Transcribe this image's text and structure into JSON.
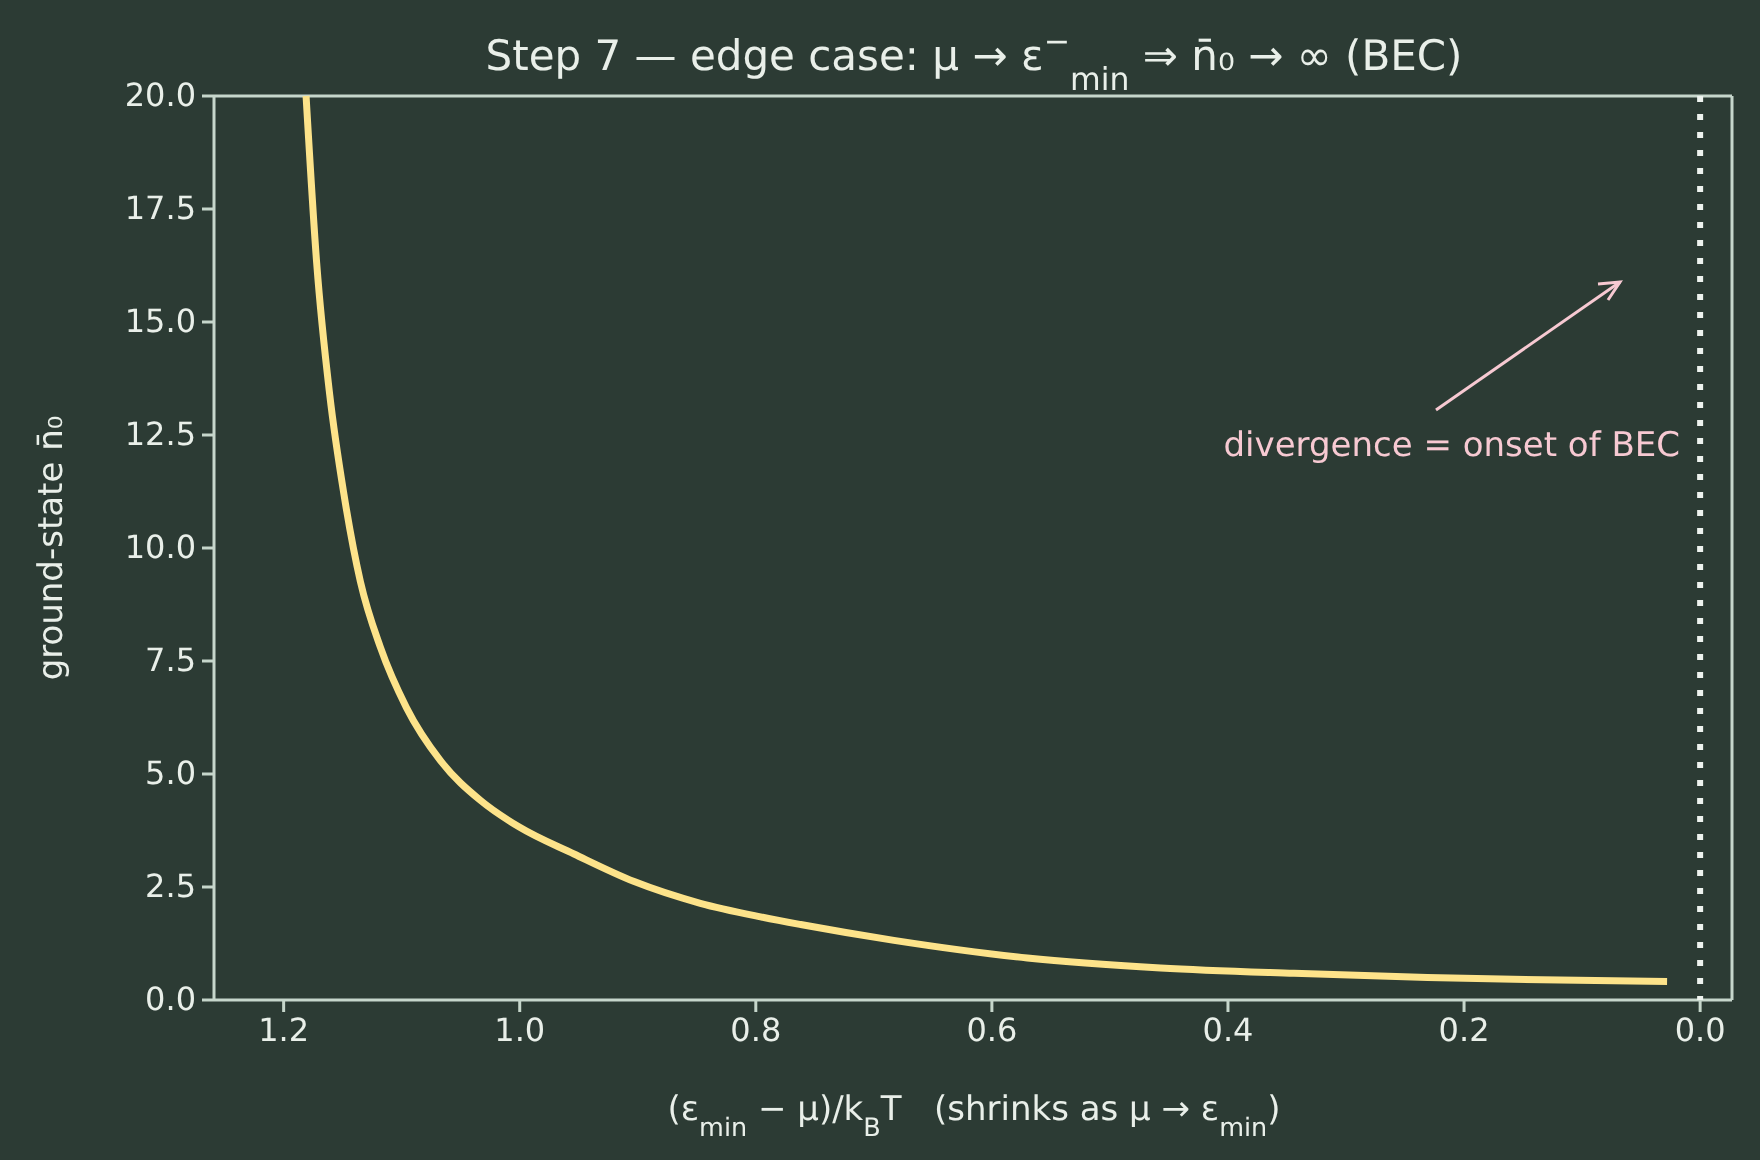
{
  "chart_data": {
    "type": "line",
    "title": "Step 7 — edge case: μ → ε$^{−}$$_{min}$ ⇒ n̄₀ → ∞ (BEC)",
    "xlabel": "(ε$_{min}$ − μ)/k$_{B}$T   (shrinks as μ → ε$_{min}$)",
    "ylabel": "ground-state n̄₀",
    "xlim": [
      1.259,
      -0.027
    ],
    "ylim": [
      0,
      20
    ],
    "xticks": [
      {
        "value": 1.2,
        "label": "1.2"
      },
      {
        "value": 1.0,
        "label": "1.0"
      },
      {
        "value": 0.8,
        "label": "0.8"
      },
      {
        "value": 0.6,
        "label": "0.6"
      },
      {
        "value": 0.4,
        "label": "0.4"
      },
      {
        "value": 0.2,
        "label": "0.2"
      },
      {
        "value": 0,
        "label": "0.0"
      }
    ],
    "yticks": [
      {
        "value": 0,
        "label": "0.0"
      },
      {
        "value": 2.5,
        "label": "2.5"
      },
      {
        "value": 5,
        "label": "5.0"
      },
      {
        "value": 7.5,
        "label": "7.5"
      },
      {
        "value": 10,
        "label": "10.0"
      },
      {
        "value": 12.5,
        "label": "12.5"
      },
      {
        "value": 15,
        "label": "15.0"
      },
      {
        "value": 17.5,
        "label": "17.5"
      },
      {
        "value": 20,
        "label": "20.0"
      }
    ],
    "grid": false,
    "series": [
      {
        "color": "#fde38a",
        "x": [
          1.181,
          1.172,
          1.161,
          1.149,
          1.135,
          1.118,
          1.096,
          1.067,
          1.033,
          1.0,
          0.954,
          0.903,
          0.847,
          0.796,
          0.762,
          0.683,
          0.57,
          0.457,
          0.344,
          0.231,
          0.119,
          0.028
        ],
        "values": [
          20,
          16.3,
          13.4,
          11.2,
          9.26,
          7.8,
          6.47,
          5.29,
          4.41,
          3.82,
          3.23,
          2.62,
          2.14,
          1.84,
          1.67,
          1.32,
          0.93,
          0.71,
          0.59,
          0.5,
          0.44,
          0.41
        ]
      }
    ],
    "ref_lines": [
      {
        "axis": "x",
        "value": 0,
        "color": "#eef3ef",
        "line_style": "dotted"
      }
    ],
    "annotations": [
      "divergence = onset of BEC"
    ]
  }
}
